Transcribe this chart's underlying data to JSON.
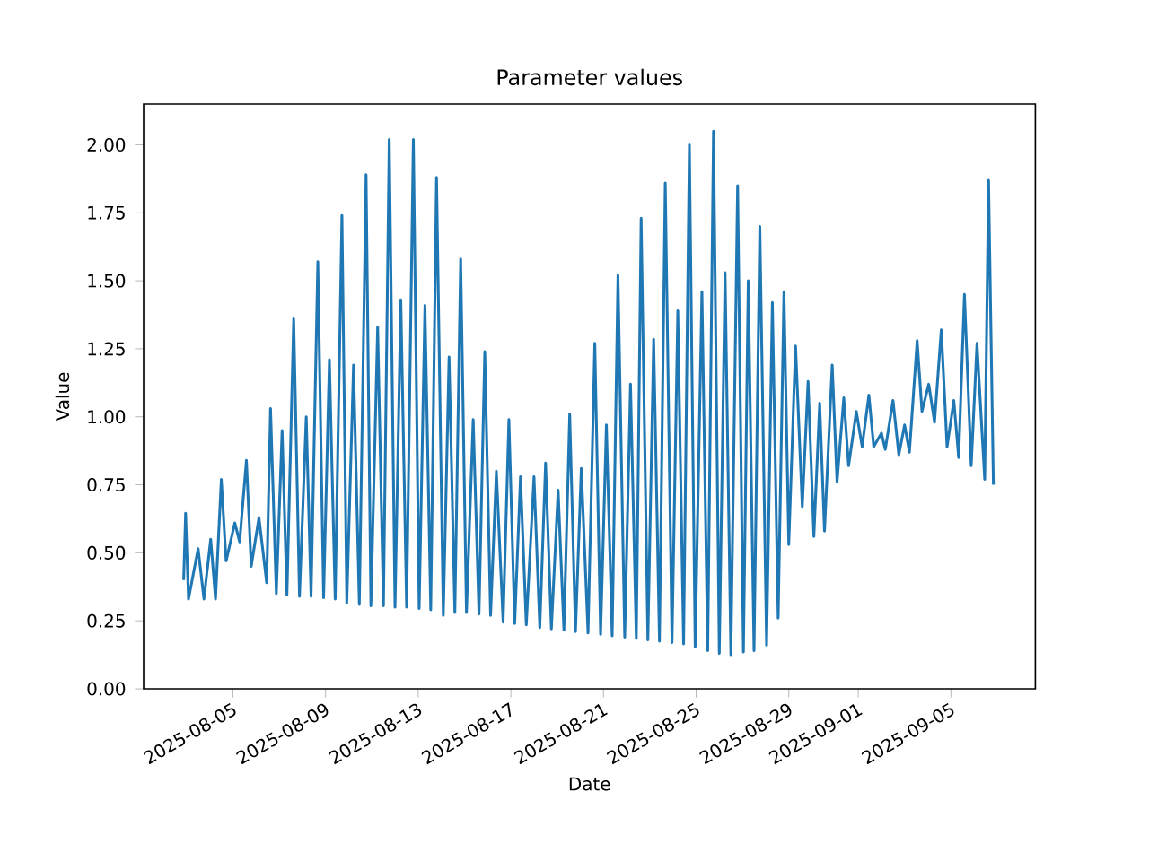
{
  "chart_data": {
    "type": "line",
    "title": "Parameter values",
    "xlabel": "Date",
    "ylabel": "Value",
    "xlim": [
      "2025-08-01T03:30",
      "2025-09-08T15:30"
    ],
    "ylim": [
      0,
      2.15
    ],
    "xticks": [
      "2025-08-05",
      "2025-08-09",
      "2025-08-13",
      "2025-08-17",
      "2025-08-21",
      "2025-08-25",
      "2025-08-29",
      "2025-09-01",
      "2025-09-05"
    ],
    "yticks": [
      {
        "value": 0,
        "label": "0.00"
      },
      {
        "value": 0.25,
        "label": "0.25"
      },
      {
        "value": 0.5,
        "label": "0.50"
      },
      {
        "value": 0.75,
        "label": "0.75"
      },
      {
        "value": 1,
        "label": "1.00"
      },
      {
        "value": 1.25,
        "label": "1.25"
      },
      {
        "value": 1.5,
        "label": "1.50"
      },
      {
        "value": 1.75,
        "label": "1.75"
      },
      {
        "value": 2,
        "label": "2.00"
      }
    ],
    "x": [
      "2025-08-02T21:00",
      "2025-08-02T23:00",
      "2025-08-03T02:00",
      "2025-08-03T12:00",
      "2025-08-03T18:00",
      "2025-08-04T01:00",
      "2025-08-04T06:00",
      "2025-08-04T12:00",
      "2025-08-04T17:00",
      "2025-08-05T02:00",
      "2025-08-05T07:00",
      "2025-08-05T14:00",
      "2025-08-05T19:00",
      "2025-08-06T03:00",
      "2025-08-06T11:00",
      "2025-08-06T15:00",
      "2025-08-06T21:00",
      "2025-08-07T03:00",
      "2025-08-07T08:00",
      "2025-08-07T15:00",
      "2025-08-07T21:00",
      "2025-08-08T04:00",
      "2025-08-08T09:00",
      "2025-08-08T16:00",
      "2025-08-08T22:00",
      "2025-08-09T04:00",
      "2025-08-09T10:00",
      "2025-08-09T17:00",
      "2025-08-09T22:00",
      "2025-08-10T05:00",
      "2025-08-10T11:00",
      "2025-08-10T18:00",
      "2025-08-10T23:00",
      "2025-08-11T06:00",
      "2025-08-11T12:00",
      "2025-08-11T18:00",
      "2025-08-12T00:00",
      "2025-08-12T06:00",
      "2025-08-12T12:00",
      "2025-08-12T19:00",
      "2025-08-13T01:00",
      "2025-08-13T07:00",
      "2025-08-13T13:00",
      "2025-08-13T19:00",
      "2025-08-14T02:00",
      "2025-08-14T08:00",
      "2025-08-14T14:00",
      "2025-08-14T20:00",
      "2025-08-15T02:00",
      "2025-08-15T09:00",
      "2025-08-15T15:00",
      "2025-08-15T21:00",
      "2025-08-16T03:00",
      "2025-08-16T09:00",
      "2025-08-16T16:00",
      "2025-08-16T22:00",
      "2025-08-17T04:00",
      "2025-08-17T10:00",
      "2025-08-17T16:00",
      "2025-08-18T00:00",
      "2025-08-18T06:00",
      "2025-08-18T12:00",
      "2025-08-18T18:00",
      "2025-08-19T01:00",
      "2025-08-19T07:00",
      "2025-08-19T13:00",
      "2025-08-19T19:00",
      "2025-08-20T01:00",
      "2025-08-20T08:00",
      "2025-08-20T15:00",
      "2025-08-20T21:00",
      "2025-08-21T03:00",
      "2025-08-21T09:00",
      "2025-08-21T15:00",
      "2025-08-21T22:00",
      "2025-08-22T04:00",
      "2025-08-22T10:00",
      "2025-08-22T15:00",
      "2025-08-22T22:00",
      "2025-08-23T04:00",
      "2025-08-23T10:00",
      "2025-08-23T16:00",
      "2025-08-23T23:00",
      "2025-08-24T05:00",
      "2025-08-24T11:00",
      "2025-08-24T17:00",
      "2025-08-24T23:00",
      "2025-08-25T06:00",
      "2025-08-25T12:00",
      "2025-08-25T18:00",
      "2025-08-26T00:00",
      "2025-08-26T06:00",
      "2025-08-26T12:00",
      "2025-08-26T19:00",
      "2025-08-27T01:00",
      "2025-08-27T06:00",
      "2025-08-27T12:00",
      "2025-08-27T18:00",
      "2025-08-28T01:00",
      "2025-08-28T07:00",
      "2025-08-28T13:00",
      "2025-08-28T19:00",
      "2025-08-29T00:00",
      "2025-08-29T07:00",
      "2025-08-29T14:00",
      "2025-08-29T20:00",
      "2025-08-30T02:00",
      "2025-08-30T08:00",
      "2025-08-30T13:00",
      "2025-08-30T21:00",
      "2025-08-31T02:00",
      "2025-08-31T09:00",
      "2025-08-31T14:00",
      "2025-08-31T22:00",
      "2025-09-01T04:00",
      "2025-09-01T11:00",
      "2025-09-01T16:00",
      "2025-09-02T00:00",
      "2025-09-02T04:00",
      "2025-09-02T12:00",
      "2025-09-02T18:00",
      "2025-09-03T00:00",
      "2025-09-03T05:00",
      "2025-09-03T13:00",
      "2025-09-03T18:00",
      "2025-09-04T01:00",
      "2025-09-04T07:00",
      "2025-09-04T14:00",
      "2025-09-04T20:00",
      "2025-09-05T03:00",
      "2025-09-05T08:00",
      "2025-09-05T14:00",
      "2025-09-05T21:00",
      "2025-09-06T03:00",
      "2025-09-06T11:00",
      "2025-09-06T15:00",
      "2025-09-06T20:00"
    ],
    "series": [
      {
        "color": "#1f77b4",
        "values": [
          0.4,
          0.645,
          0.33,
          0.515,
          0.33,
          0.55,
          0.33,
          0.77,
          0.47,
          0.61,
          0.54,
          0.84,
          0.45,
          0.63,
          0.39,
          1.03,
          0.35,
          0.95,
          0.345,
          1.36,
          0.34,
          1.0,
          0.34,
          1.57,
          0.335,
          1.21,
          0.33,
          1.74,
          0.315,
          1.19,
          0.31,
          1.89,
          0.305,
          1.33,
          0.305,
          2.02,
          0.3,
          1.43,
          0.3,
          2.02,
          0.295,
          1.41,
          0.29,
          1.88,
          0.27,
          1.22,
          0.28,
          1.58,
          0.28,
          0.99,
          0.275,
          1.24,
          0.27,
          0.8,
          0.245,
          0.99,
          0.24,
          0.78,
          0.235,
          0.78,
          0.225,
          0.83,
          0.22,
          0.73,
          0.215,
          1.01,
          0.21,
          0.81,
          0.205,
          1.27,
          0.2,
          0.97,
          0.195,
          1.52,
          0.19,
          1.12,
          0.185,
          1.73,
          0.18,
          1.285,
          0.175,
          1.86,
          0.17,
          1.39,
          0.165,
          2.0,
          0.155,
          1.46,
          0.14,
          2.05,
          0.13,
          1.53,
          0.125,
          1.85,
          0.135,
          1.5,
          0.14,
          1.7,
          0.16,
          1.42,
          0.26,
          1.46,
          0.53,
          1.26,
          0.67,
          1.13,
          0.56,
          1.05,
          0.58,
          1.19,
          0.76,
          1.07,
          0.82,
          1.02,
          0.89,
          1.08,
          0.89,
          0.94,
          0.88,
          1.06,
          0.86,
          0.97,
          0.87,
          1.28,
          1.02,
          1.12,
          0.98,
          1.32,
          0.89,
          1.06,
          0.85,
          1.45,
          0.82,
          1.27,
          0.77,
          1.87,
          0.75
        ]
      }
    ]
  }
}
